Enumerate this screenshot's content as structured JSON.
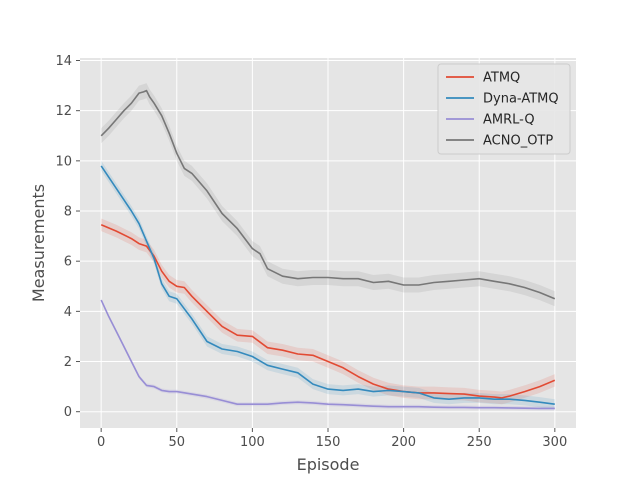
{
  "chart_data": {
    "type": "line",
    "xlabel": "Episode",
    "ylabel": "Measurements",
    "xlim": [
      -14,
      314
    ],
    "ylim": [
      -0.65,
      14.1
    ],
    "xticks": [
      0,
      50,
      100,
      150,
      200,
      250,
      300
    ],
    "yticks": [
      0,
      2,
      4,
      6,
      8,
      10,
      12,
      14
    ],
    "grid": true,
    "legend_position": "upper right",
    "series": [
      {
        "name": "ATMQ",
        "color": "#e24a33",
        "x": [
          0,
          10,
          20,
          25,
          30,
          35,
          40,
          45,
          50,
          55,
          60,
          70,
          80,
          90,
          100,
          110,
          120,
          130,
          140,
          150,
          160,
          170,
          180,
          190,
          200,
          210,
          220,
          230,
          240,
          250,
          260,
          265,
          270,
          280,
          290,
          300
        ],
        "y": [
          7.45,
          7.2,
          6.9,
          6.7,
          6.6,
          6.2,
          5.6,
          5.2,
          5.0,
          4.95,
          4.6,
          4.0,
          3.4,
          3.05,
          3.0,
          2.55,
          2.45,
          2.3,
          2.25,
          2.0,
          1.75,
          1.4,
          1.1,
          0.9,
          0.8,
          0.75,
          0.75,
          0.72,
          0.7,
          0.62,
          0.58,
          0.55,
          0.62,
          0.8,
          1.0,
          1.25
        ],
        "band": 0.25
      },
      {
        "name": "Dyna-ATMQ",
        "color": "#348abd",
        "x": [
          0,
          10,
          20,
          25,
          30,
          35,
          40,
          45,
          50,
          55,
          60,
          70,
          80,
          90,
          100,
          110,
          120,
          130,
          140,
          150,
          160,
          170,
          180,
          190,
          200,
          210,
          220,
          230,
          240,
          250,
          260,
          270,
          280,
          290,
          300
        ],
        "y": [
          9.8,
          8.9,
          8.0,
          7.5,
          6.8,
          6.1,
          5.1,
          4.6,
          4.5,
          4.1,
          3.7,
          2.8,
          2.5,
          2.4,
          2.2,
          1.85,
          1.7,
          1.55,
          1.1,
          0.9,
          0.85,
          0.9,
          0.8,
          0.85,
          0.8,
          0.75,
          0.55,
          0.5,
          0.55,
          0.55,
          0.5,
          0.5,
          0.45,
          0.38,
          0.3
        ],
        "band": 0.2
      },
      {
        "name": "AMRL-Q",
        "color": "#988ed5",
        "x": [
          0,
          5,
          10,
          15,
          20,
          25,
          30,
          35,
          40,
          45,
          50,
          60,
          70,
          80,
          90,
          100,
          110,
          120,
          130,
          140,
          150,
          160,
          170,
          180,
          190,
          200,
          210,
          220,
          230,
          240,
          250,
          260,
          270,
          280,
          290,
          300
        ],
        "y": [
          4.45,
          3.8,
          3.2,
          2.6,
          2.0,
          1.4,
          1.05,
          1.0,
          0.85,
          0.8,
          0.8,
          0.7,
          0.6,
          0.45,
          0.3,
          0.3,
          0.3,
          0.35,
          0.38,
          0.35,
          0.3,
          0.28,
          0.25,
          0.22,
          0.2,
          0.2,
          0.2,
          0.18,
          0.17,
          0.17,
          0.16,
          0.16,
          0.15,
          0.14,
          0.13,
          0.13
        ],
        "band": 0.08
      },
      {
        "name": "ACNO_OTP",
        "color": "#777777",
        "x": [
          0,
          5,
          10,
          15,
          20,
          25,
          28,
          30,
          32,
          35,
          40,
          45,
          50,
          55,
          60,
          70,
          80,
          90,
          100,
          105,
          110,
          120,
          130,
          140,
          150,
          160,
          170,
          180,
          190,
          200,
          210,
          220,
          230,
          240,
          250,
          260,
          270,
          280,
          290,
          300
        ],
        "y": [
          11.0,
          11.3,
          11.65,
          12.0,
          12.3,
          12.7,
          12.75,
          12.8,
          12.55,
          12.3,
          11.8,
          11.1,
          10.3,
          9.7,
          9.5,
          8.8,
          7.9,
          7.3,
          6.5,
          6.3,
          5.7,
          5.4,
          5.3,
          5.35,
          5.35,
          5.3,
          5.3,
          5.15,
          5.2,
          5.05,
          5.05,
          5.15,
          5.2,
          5.25,
          5.3,
          5.2,
          5.1,
          4.95,
          4.75,
          4.5
        ],
        "band": 0.3
      }
    ]
  }
}
